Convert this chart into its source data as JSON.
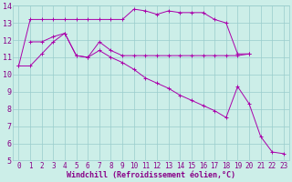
{
  "bg_color": "#cceee8",
  "line_color": "#aa00aa",
  "grid_color": "#99cccc",
  "spine_color": "#99cccc",
  "ylabel_values": [
    5,
    6,
    7,
    8,
    9,
    10,
    11,
    12,
    13,
    14
  ],
  "xlabel_values": [
    0,
    1,
    2,
    3,
    4,
    5,
    6,
    7,
    8,
    9,
    10,
    11,
    12,
    13,
    14,
    15,
    16,
    17,
    18,
    19,
    20,
    21,
    22,
    23
  ],
  "xlabel": "Windchill (Refroidissement éolien,°C)",
  "xlim": [
    -0.5,
    23.5
  ],
  "ylim": [
    5,
    14
  ],
  "lines": [
    {
      "x": [
        0,
        1,
        2,
        3,
        4,
        5,
        6,
        7,
        8,
        9,
        10,
        11,
        12,
        13,
        14,
        15,
        16,
        17,
        18,
        19,
        20
      ],
      "y": [
        10.5,
        13.2,
        13.2,
        13.2,
        13.2,
        13.2,
        13.2,
        13.2,
        13.2,
        13.2,
        13.8,
        13.7,
        13.5,
        13.7,
        13.6,
        13.6,
        13.6,
        13.2,
        13.0,
        11.2,
        11.2
      ]
    },
    {
      "x": [
        1,
        2,
        3,
        4,
        5,
        6,
        7,
        8,
        9,
        10,
        11,
        12,
        13,
        14,
        15,
        16,
        17,
        18,
        19,
        20
      ],
      "y": [
        11.9,
        11.9,
        12.2,
        12.4,
        11.1,
        11.0,
        11.9,
        11.4,
        11.1,
        11.1,
        11.1,
        11.1,
        11.1,
        11.1,
        11.1,
        11.1,
        11.1,
        11.1,
        11.1,
        11.2
      ]
    },
    {
      "x": [
        0,
        1,
        2,
        3,
        4,
        5,
        6,
        7,
        8,
        9,
        10,
        11,
        12,
        13,
        14,
        15,
        16,
        17,
        18,
        19,
        20,
        21,
        22,
        23
      ],
      "y": [
        10.5,
        10.5,
        11.2,
        11.9,
        12.4,
        11.1,
        11.0,
        11.4,
        11.0,
        10.7,
        10.3,
        9.8,
        9.5,
        9.2,
        8.8,
        8.5,
        8.2,
        7.9,
        7.5,
        9.3,
        8.3,
        6.4,
        5.5,
        5.4
      ]
    }
  ],
  "tick_fontsize": 6,
  "xlabel_fontsize": 6,
  "tick_color": "#880088"
}
